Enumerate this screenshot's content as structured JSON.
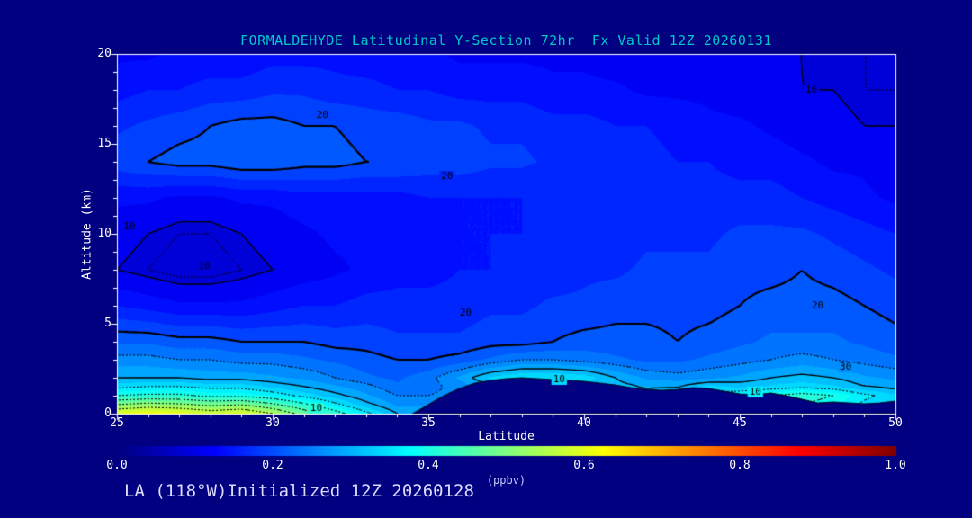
{
  "title": "FORMALDEHYDE Latitudinal Y-Section 72hr  Fx Valid 12Z 20260131",
  "footer": "LA (118°W)Initialized 12Z 20260128",
  "colors": {
    "background": "#000080",
    "title": "#00c8c8",
    "axis": "#ffffff",
    "contour": "#000000",
    "footer": "#dcdcff",
    "unit_label": "#c8c8ff"
  },
  "chart_data": {
    "type": "heatmap",
    "title": "FORMALDEHYDE Latitudinal Y-Section 72hr  Fx Valid 12Z 20260131",
    "x_label": "Latitude",
    "y_label": "Altitude (km)",
    "x_range": [
      25,
      50
    ],
    "y_range": [
      0,
      20
    ],
    "x_ticks": [
      25,
      30,
      35,
      40,
      45,
      50
    ],
    "y_ticks": [
      0,
      5,
      10,
      15,
      20
    ],
    "grid_on": false,
    "fill_band_step": 0.025,
    "colorbar": {
      "label": "(ppbv)",
      "range": [
        0,
        1
      ],
      "ticks": [
        0.0,
        0.2,
        0.4,
        0.6,
        0.8,
        1.0
      ],
      "colormap": "jet"
    },
    "contour_levels_solid": [
      0.1,
      0.2,
      0.3
    ],
    "contour_levels_dotted": [
      0.09,
      0.25,
      0.35,
      0.4,
      0.45,
      0.5,
      0.55
    ],
    "contour_labels": [
      {
        "text": "20",
        "lat": 31.6,
        "alt": 16.6
      },
      {
        "text": "10",
        "lat": 47.3,
        "alt": 18.0
      },
      {
        "text": "20",
        "lat": 35.6,
        "alt": 13.2
      },
      {
        "text": "10",
        "lat": 25.4,
        "alt": 10.4
      },
      {
        "text": "10",
        "lat": 27.8,
        "alt": 8.2
      },
      {
        "text": "20",
        "lat": 36.2,
        "alt": 5.6
      },
      {
        "text": "20",
        "lat": 47.5,
        "alt": 6.0
      },
      {
        "text": "30",
        "lat": 48.4,
        "alt": 2.6
      },
      {
        "text": "10",
        "lat": 31.4,
        "alt": 0.3
      },
      {
        "text": "10",
        "lat": 39.2,
        "alt": 1.9
      },
      {
        "text": "10",
        "lat": 45.5,
        "alt": 1.2
      }
    ],
    "terrain": [
      [
        34.5,
        0
      ],
      [
        35,
        0.5
      ],
      [
        35.5,
        1.0
      ],
      [
        36,
        1.4
      ],
      [
        36.5,
        1.7
      ],
      [
        37,
        1.85
      ],
      [
        37.5,
        1.95
      ],
      [
        38,
        2.0
      ],
      [
        38.5,
        1.95
      ],
      [
        39,
        1.9
      ],
      [
        39.5,
        1.85
      ],
      [
        40,
        1.8
      ],
      [
        40.5,
        1.7
      ],
      [
        41,
        1.6
      ],
      [
        41.5,
        1.45
      ],
      [
        42,
        1.35
      ],
      [
        42.5,
        1.3
      ],
      [
        43,
        1.35
      ],
      [
        43.5,
        1.45
      ],
      [
        44,
        1.4
      ],
      [
        44.5,
        1.25
      ],
      [
        45,
        1.1
      ],
      [
        45.5,
        1.05
      ],
      [
        46,
        1.15
      ],
      [
        46.5,
        1.0
      ],
      [
        47,
        0.8
      ],
      [
        47.5,
        0.6
      ],
      [
        48,
        0.65
      ],
      [
        48.5,
        0.6
      ],
      [
        49,
        0.55
      ],
      [
        49.5,
        0.6
      ],
      [
        50,
        0.7
      ]
    ],
    "grid": {
      "lat": [
        25,
        26,
        27,
        28,
        29,
        30,
        31,
        32,
        33,
        34,
        35,
        36,
        37,
        38,
        39,
        40,
        41,
        42,
        43,
        44,
        45,
        46,
        47,
        48,
        49,
        50
      ],
      "alt": [
        0,
        0.5,
        1,
        1.5,
        2,
        3,
        4,
        6,
        8,
        10,
        12,
        14,
        16,
        18,
        20
      ],
      "values_ppbv": [
        [
          0.6,
          0.62,
          0.61,
          0.58,
          0.6,
          0.55,
          0.48,
          0.42,
          0.36,
          0.3,
          0.3,
          0.32,
          0.33,
          0.34,
          0.35,
          0.36,
          0.36,
          0.35,
          0.34,
          0.36,
          0.38,
          0.4,
          0.42,
          0.4,
          0.36,
          0.34
        ],
        [
          0.5,
          0.52,
          0.51,
          0.49,
          0.5,
          0.46,
          0.41,
          0.36,
          0.31,
          0.27,
          0.27,
          0.29,
          0.3,
          0.31,
          0.33,
          0.34,
          0.34,
          0.33,
          0.32,
          0.34,
          0.36,
          0.38,
          0.4,
          0.38,
          0.34,
          0.32
        ],
        [
          0.4,
          0.41,
          0.41,
          0.39,
          0.39,
          0.37,
          0.34,
          0.31,
          0.28,
          0.25,
          0.25,
          0.26,
          0.27,
          0.28,
          0.3,
          0.31,
          0.31,
          0.3,
          0.32,
          0.36,
          0.38,
          0.4,
          0.42,
          0.4,
          0.36,
          0.33
        ],
        [
          0.34,
          0.35,
          0.35,
          0.34,
          0.34,
          0.32,
          0.3,
          0.28,
          0.26,
          0.23,
          0.24,
          0.26,
          0.29,
          0.31,
          0.32,
          0.32,
          0.31,
          0.3,
          0.3,
          0.33,
          0.32,
          0.33,
          0.34,
          0.33,
          0.3,
          0.29
        ],
        [
          0.3,
          0.3,
          0.3,
          0.29,
          0.29,
          0.28,
          0.27,
          0.25,
          0.23,
          0.22,
          0.24,
          0.28,
          0.33,
          0.35,
          0.35,
          0.34,
          0.3,
          0.27,
          0.26,
          0.27,
          0.28,
          0.3,
          0.31,
          0.3,
          0.28,
          0.27
        ],
        [
          0.26,
          0.26,
          0.25,
          0.25,
          0.24,
          0.24,
          0.23,
          0.22,
          0.21,
          0.2,
          0.2,
          0.21,
          0.23,
          0.25,
          0.25,
          0.24,
          0.23,
          0.22,
          0.22,
          0.23,
          0.24,
          0.25,
          0.26,
          0.25,
          0.24,
          0.23
        ],
        [
          0.22,
          0.22,
          0.21,
          0.21,
          0.2,
          0.2,
          0.2,
          0.19,
          0.19,
          0.18,
          0.18,
          0.18,
          0.19,
          0.19,
          0.2,
          0.21,
          0.21,
          0.21,
          0.2,
          0.21,
          0.22,
          0.23,
          0.23,
          0.23,
          0.22,
          0.21
        ],
        [
          0.15,
          0.14,
          0.13,
          0.13,
          0.13,
          0.14,
          0.15,
          0.15,
          0.16,
          0.16,
          0.16,
          0.16,
          0.17,
          0.17,
          0.18,
          0.18,
          0.19,
          0.19,
          0.19,
          0.19,
          0.2,
          0.21,
          0.21,
          0.21,
          0.2,
          0.19
        ],
        [
          0.1,
          0.09,
          0.08,
          0.08,
          0.09,
          0.1,
          0.11,
          0.12,
          0.13,
          0.14,
          0.14,
          0.15,
          0.15,
          0.16,
          0.16,
          0.17,
          0.17,
          0.18,
          0.18,
          0.18,
          0.19,
          0.19,
          0.2,
          0.19,
          0.18,
          0.17
        ],
        [
          0.11,
          0.1,
          0.09,
          0.09,
          0.1,
          0.11,
          0.12,
          0.13,
          0.13,
          0.14,
          0.14,
          0.15,
          0.15,
          0.15,
          0.16,
          0.16,
          0.16,
          0.17,
          0.17,
          0.17,
          0.18,
          0.18,
          0.18,
          0.17,
          0.16,
          0.15
        ],
        [
          0.13,
          0.13,
          0.12,
          0.12,
          0.13,
          0.13,
          0.14,
          0.14,
          0.14,
          0.14,
          0.15,
          0.15,
          0.15,
          0.15,
          0.15,
          0.16,
          0.16,
          0.16,
          0.16,
          0.16,
          0.16,
          0.16,
          0.15,
          0.14,
          0.13,
          0.12
        ],
        [
          0.19,
          0.2,
          0.21,
          0.21,
          0.22,
          0.22,
          0.21,
          0.21,
          0.2,
          0.2,
          0.19,
          0.19,
          0.18,
          0.18,
          0.17,
          0.17,
          0.16,
          0.16,
          0.15,
          0.15,
          0.14,
          0.14,
          0.13,
          0.12,
          0.12,
          0.11
        ],
        [
          0.17,
          0.18,
          0.19,
          0.2,
          0.21,
          0.21,
          0.2,
          0.2,
          0.19,
          0.19,
          0.18,
          0.18,
          0.17,
          0.17,
          0.16,
          0.16,
          0.15,
          0.15,
          0.14,
          0.13,
          0.13,
          0.12,
          0.11,
          0.11,
          0.1,
          0.1
        ],
        [
          0.14,
          0.15,
          0.15,
          0.16,
          0.16,
          0.17,
          0.17,
          0.16,
          0.16,
          0.15,
          0.15,
          0.14,
          0.14,
          0.14,
          0.13,
          0.13,
          0.13,
          0.12,
          0.12,
          0.12,
          0.11,
          0.11,
          0.1,
          0.1,
          0.09,
          0.09
        ],
        [
          0.12,
          0.12,
          0.13,
          0.13,
          0.13,
          0.14,
          0.14,
          0.14,
          0.13,
          0.13,
          0.13,
          0.12,
          0.12,
          0.12,
          0.12,
          0.12,
          0.11,
          0.11,
          0.11,
          0.11,
          0.1,
          0.1,
          0.1,
          0.09,
          0.09,
          0.09
        ]
      ]
    }
  }
}
